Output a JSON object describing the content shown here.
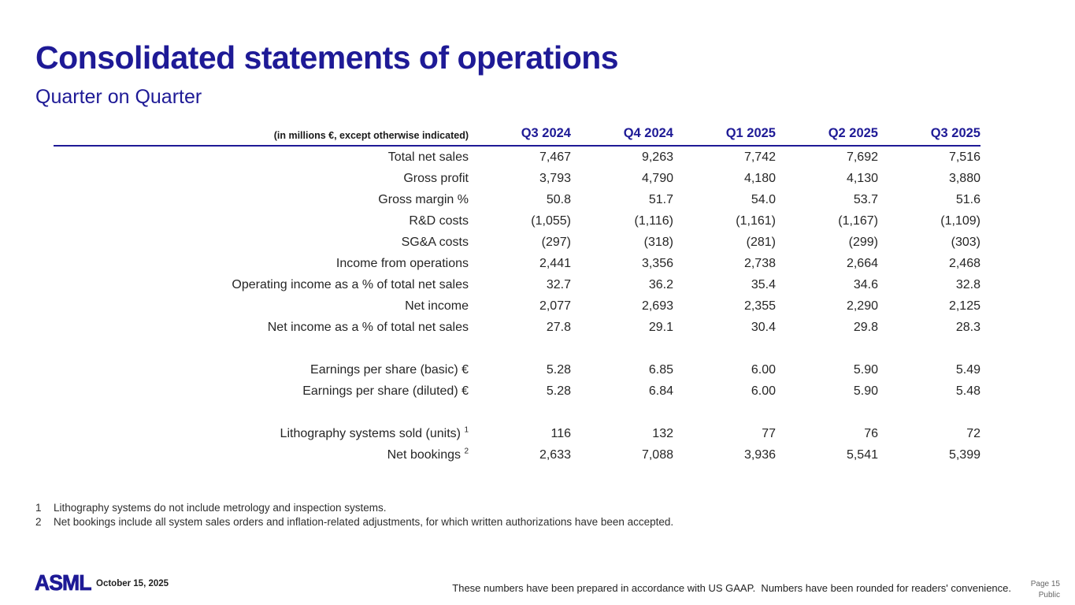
{
  "slide": {
    "title": "Consolidated statements of operations",
    "subtitle": "Quarter on Quarter"
  },
  "table": {
    "unit_note": "(in millions €, except otherwise indicated)",
    "columns": [
      "Q3 2024",
      "Q4 2024",
      "Q1 2025",
      "Q2 2025",
      "Q3 2025"
    ],
    "rows": [
      {
        "label": "Total net sales",
        "values": [
          "7,467",
          "9,263",
          "7,742",
          "7,692",
          "7,516"
        ]
      },
      {
        "label": "Gross profit",
        "values": [
          "3,793",
          "4,790",
          "4,180",
          "4,130",
          "3,880"
        ]
      },
      {
        "label": "Gross margin %",
        "values": [
          "50.8",
          "51.7",
          "54.0",
          "53.7",
          "51.6"
        ]
      },
      {
        "label": "R&D costs",
        "values": [
          "(1,055)",
          "(1,116)",
          "(1,161)",
          "(1,167)",
          "(1,109)"
        ]
      },
      {
        "label": "SG&A costs",
        "values": [
          "(297)",
          "(318)",
          "(281)",
          "(299)",
          "(303)"
        ]
      },
      {
        "label": "Income from operations",
        "values": [
          "2,441",
          "3,356",
          "2,738",
          "2,664",
          "2,468"
        ]
      },
      {
        "label": "Operating income as a % of total net sales",
        "values": [
          "32.7",
          "36.2",
          "35.4",
          "34.6",
          "32.8"
        ]
      },
      {
        "label": "Net income",
        "values": [
          "2,077",
          "2,693",
          "2,355",
          "2,290",
          "2,125"
        ]
      },
      {
        "label": "Net income as a % of total net sales",
        "values": [
          "27.8",
          "29.1",
          "30.4",
          "29.8",
          "28.3"
        ]
      },
      {
        "spacer": true
      },
      {
        "label": "Earnings per share (basic) €",
        "values": [
          "5.28",
          "6.85",
          "6.00",
          "5.90",
          "5.49"
        ]
      },
      {
        "label": "Earnings per share (diluted) €",
        "values": [
          "5.28",
          "6.84",
          "6.00",
          "5.90",
          "5.48"
        ]
      },
      {
        "spacer": true
      },
      {
        "label": "Lithography systems sold (units)",
        "sup": "1",
        "values": [
          "116",
          "132",
          "77",
          "76",
          "72"
        ]
      },
      {
        "label": "Net bookings",
        "sup": "2",
        "values": [
          "2,633",
          "7,088",
          "3,936",
          "5,541",
          "5,399"
        ]
      }
    ]
  },
  "footnotes": [
    {
      "marker": "1",
      "text": "Lithography systems do not include metrology and inspection systems."
    },
    {
      "marker": "2",
      "text": "Net bookings include all system sales orders and inflation-related adjustments, for which written authorizations have been accepted."
    }
  ],
  "footer": {
    "logo": "ASML",
    "date": "October 15, 2025",
    "disclaimer": "These numbers have been prepared in accordance with US GAAP.  Numbers have been rounded for readers' convenience.",
    "page": "Page 15",
    "classification": "Public"
  },
  "colors": {
    "brand_navy": "#1E1A96",
    "body_text": "#262626",
    "muted_gray": "#666666"
  }
}
